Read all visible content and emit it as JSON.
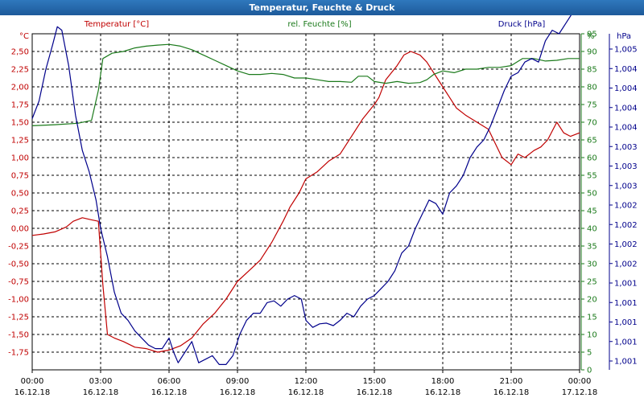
{
  "window": {
    "title": "Temperatur, Feuchte & Druck"
  },
  "colors": {
    "temperature": "#c00000",
    "humidity": "#1b7a1b",
    "pressure": "#00008b",
    "grid": "#000000",
    "title_bg": "#1d5a9a"
  },
  "chart_data": {
    "type": "line",
    "title": "Temperatur, Feuchte & Druck",
    "x_ticks": [
      {
        "time": "00:00",
        "date": "16.12.18"
      },
      {
        "time": "03:00",
        "date": "16.12.18"
      },
      {
        "time": "06:00",
        "date": "16.12.18"
      },
      {
        "time": "09:00",
        "date": "16.12.18"
      },
      {
        "time": "12:00",
        "date": "16.12.18"
      },
      {
        "time": "15:00",
        "date": "16.12.18"
      },
      {
        "time": "18:00",
        "date": "16.12.18"
      },
      {
        "time": "21:00",
        "date": "16.12.18"
      },
      {
        "time": "00:00",
        "date": "17.12.18"
      }
    ],
    "xlim_hours": [
      0,
      24
    ],
    "grid": true,
    "axes": {
      "temperature": {
        "label": "Temperatur [°C]",
        "unit": "°C",
        "ylim": [
          -2.0,
          2.75
        ],
        "ticks": [
          "2,50",
          "2,25",
          "2,00",
          "1,75",
          "1,50",
          "1,25",
          "1,00",
          "0,75",
          "0,50",
          "0,25",
          "0,00",
          "-0,25",
          "-0,50",
          "-0,75",
          "-1,00",
          "-1,25",
          "-1,50",
          "-1,75"
        ]
      },
      "humidity": {
        "label": "rel. Feuchte [%]",
        "unit": "%",
        "ylim": [
          0,
          95
        ],
        "ticks": [
          "95",
          "90",
          "85",
          "80",
          "75",
          "70",
          "65",
          "60",
          "55",
          "50",
          "45",
          "40",
          "35",
          "30",
          "25",
          "20",
          "15",
          "10",
          "5",
          "0"
        ]
      },
      "pressure": {
        "label": "Druck [hPa]",
        "unit": "hPa",
        "ticks": [
          "1,005",
          "1,004",
          "1,004",
          "1,004",
          "1,004",
          "1,003",
          "1,003",
          "1,003",
          "1,002",
          "1,002",
          "1,002",
          "1,002",
          "1,001",
          "1,001",
          "1,001",
          "1,001",
          "1,001"
        ]
      }
    },
    "series": [
      {
        "name": "Temperatur [°C]",
        "x": [
          0,
          0.5,
          1,
          1.5,
          1.8,
          2.2,
          2.6,
          2.9,
          3.1,
          3.3,
          3.6,
          4,
          4.5,
          5,
          5.5,
          6,
          6.5,
          7,
          7.5,
          8,
          8.5,
          9,
          9.5,
          10,
          10.5,
          11,
          11.3,
          11.7,
          12,
          12.5,
          13,
          13.5,
          14,
          14.5,
          15,
          15.2,
          15.5,
          16,
          16.3,
          16.6,
          17,
          17.3,
          17.6,
          18,
          18.3,
          18.6,
          19,
          19.5,
          20,
          20.3,
          20.6,
          21,
          21.3,
          21.6,
          22,
          22.3,
          22.6,
          23,
          23.3,
          23.6,
          24
        ],
        "values": [
          -0.1,
          -0.08,
          -0.05,
          0.02,
          0.1,
          0.15,
          0.12,
          0.1,
          -0.8,
          -1.5,
          -1.55,
          -1.6,
          -1.68,
          -1.7,
          -1.75,
          -1.72,
          -1.66,
          -1.55,
          -1.35,
          -1.2,
          -1.0,
          -0.75,
          -0.6,
          -0.45,
          -0.2,
          0.1,
          0.3,
          0.5,
          0.7,
          0.8,
          0.95,
          1.05,
          1.3,
          1.55,
          1.75,
          1.85,
          2.1,
          2.3,
          2.45,
          2.5,
          2.45,
          2.35,
          2.2,
          2.0,
          1.85,
          1.7,
          1.6,
          1.5,
          1.4,
          1.2,
          1.0,
          0.9,
          1.05,
          1.0,
          1.1,
          1.15,
          1.25,
          1.5,
          1.35,
          1.3,
          1.35
        ]
      },
      {
        "name": "rel. Feuchte [%]",
        "x": [
          0,
          1,
          2,
          2.6,
          2.9,
          3.1,
          3.5,
          4,
          4.5,
          5,
          5.5,
          6,
          6.5,
          7,
          7.5,
          8,
          8.5,
          9,
          9.5,
          10,
          10.5,
          11,
          11.5,
          12,
          12.5,
          13,
          13.5,
          14,
          14.3,
          14.7,
          15,
          15.5,
          16,
          16.5,
          17,
          17.3,
          17.6,
          18,
          18.5,
          19,
          19.5,
          20,
          20.5,
          21,
          21.5,
          22,
          22.5,
          23,
          23.5,
          24
        ],
        "values": [
          69,
          69.3,
          69.7,
          70.5,
          79,
          88,
          89.5,
          90,
          91,
          91.5,
          91.8,
          92,
          91.5,
          90.5,
          89,
          87.5,
          86,
          84.5,
          83.5,
          83.5,
          83.8,
          83.5,
          82.5,
          82.5,
          82,
          81.5,
          81.5,
          81.3,
          83,
          83,
          81.5,
          81,
          81.5,
          81,
          81.2,
          82,
          83.5,
          84.5,
          84,
          85,
          85,
          85.5,
          85.5,
          86,
          88,
          88,
          87.3,
          87.5,
          88,
          88
        ]
      },
      {
        "name": "Druck [hPa]",
        "x": [
          0,
          0.3,
          0.6,
          0.9,
          1.1,
          1.3,
          1.6,
          1.9,
          2.2,
          2.5,
          2.8,
          3,
          3.3,
          3.6,
          3.9,
          4.2,
          4.5,
          4.8,
          5.1,
          5.4,
          5.7,
          6,
          6.2,
          6.4,
          6.7,
          7,
          7.3,
          7.6,
          7.9,
          8.2,
          8.5,
          8.8,
          9.1,
          9.4,
          9.7,
          10,
          10.3,
          10.6,
          10.9,
          11.2,
          11.5,
          11.8,
          12,
          12.3,
          12.6,
          12.9,
          13.2,
          13.5,
          13.8,
          14.1,
          14.4,
          14.7,
          15,
          15.3,
          15.6,
          15.9,
          16.2,
          16.5,
          16.8,
          17.1,
          17.4,
          17.7,
          18,
          18.3,
          18.6,
          18.9,
          19.2,
          19.5,
          19.8,
          20.1,
          20.4,
          20.7,
          21,
          21.3,
          21.6,
          21.9,
          22.2,
          22.5,
          22.8,
          23.1,
          23.4,
          23.7,
          24
        ],
        "values": [
          71,
          76,
          85,
          92,
          97,
          96,
          86,
          72,
          62,
          56,
          48,
          40,
          32,
          22,
          16,
          14,
          11,
          9,
          7,
          6,
          6,
          9,
          5,
          2,
          5,
          8,
          2,
          3,
          4,
          1.5,
          1.5,
          4,
          10,
          14,
          16,
          16,
          19,
          19.5,
          18,
          20,
          21,
          20,
          14,
          12,
          13,
          13.2,
          12.5,
          14,
          16,
          15,
          18,
          20,
          21,
          23,
          25,
          28,
          33,
          35,
          40,
          44,
          48,
          47,
          44,
          50,
          52,
          55,
          60,
          63,
          65,
          69,
          74,
          79,
          83,
          84,
          87,
          88,
          87,
          93,
          96,
          95,
          98,
          101,
          105
        ]
      }
    ]
  }
}
